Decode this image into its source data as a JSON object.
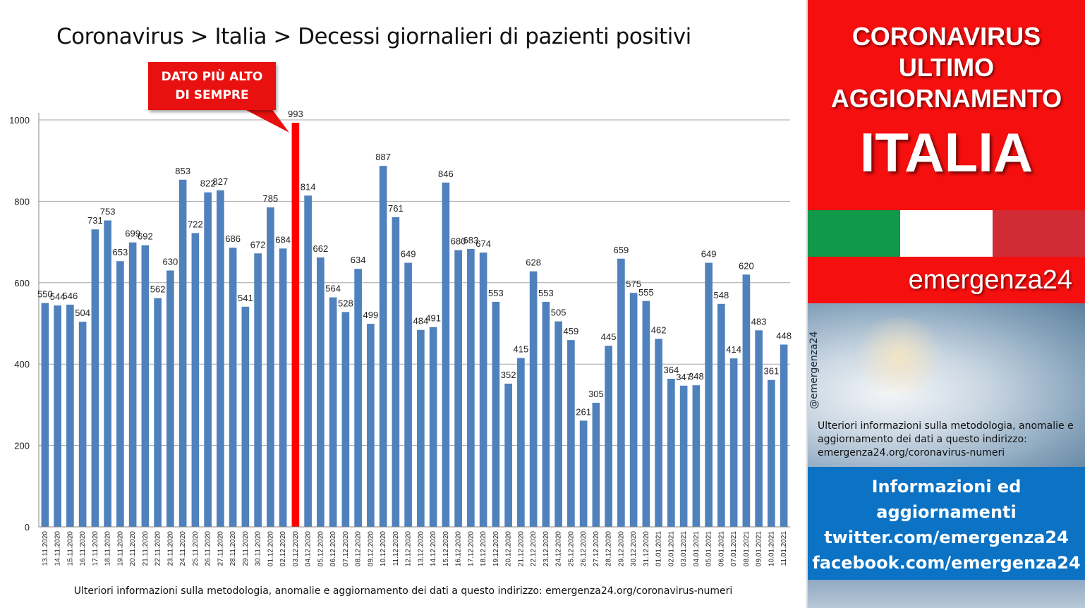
{
  "title": "Coronavirus > Italia > Decessi giornalieri di pazienti positivi",
  "callout": {
    "line1": "DATO PIÙ ALTO",
    "line2": "DI SEMPRE"
  },
  "footnote": "Ulteriori informazioni sulla metodologia, anomalie e aggiornamento dei dati a questo indirizzo: emergenza24.org/coronavirus-numeri",
  "colors": {
    "bar": "#4f81bd",
    "highlight_bar": "#ff0000",
    "callout": "#e8110f",
    "red_panel": "#f50f0f",
    "blue_panel": "#0b72c4"
  },
  "side": {
    "headline1": "CORONAVIRUS",
    "headline2": "ULTIMO",
    "headline3": "AGGIORNAMENTO",
    "headline_big": "ITALIA",
    "brand": "emergenza24",
    "handle": "@emergenza24",
    "note": "Ulteriori informazioni sulla metodologia, anomalie e aggiornamento dei dati a questo indirizzo: emergenza24.org/coronavirus-numeri",
    "info1": "Informazioni ed",
    "info2": "aggiornamenti",
    "info3": "twitter.com/emergenza24",
    "info4": "facebook.com/emergenza24"
  },
  "chart_data": {
    "type": "bar",
    "title": "Coronavirus > Italia > Decessi giornalieri di pazienti positivi",
    "xlabel": "",
    "ylabel": "",
    "ylim": [
      0,
      1000
    ],
    "yticks": [
      0,
      200,
      400,
      600,
      800,
      1000
    ],
    "grid": true,
    "highlight_category": "03.12.2020",
    "categories": [
      "13.11.2020",
      "14.11.2020",
      "15.11.2020",
      "16.11.2020",
      "17.11.2020",
      "18.11.2020",
      "19.11.2020",
      "20.11.2020",
      "21.11.2020",
      "22.11.2020",
      "23.11.2020",
      "24.11.2020",
      "25.11.2020",
      "26.11.2020",
      "27.11.2020",
      "28.11.2020",
      "29.11.2020",
      "30.11.2020",
      "01.12.2020",
      "02.12.2020",
      "03.12.2020",
      "04.12.2020",
      "05.12.2020",
      "06.12.2020",
      "07.12.2020",
      "08.12.2020",
      "09.12.2020",
      "10.12.2020",
      "11.12.2020",
      "12.12.2020",
      "13.12.2020",
      "14.12.2020",
      "15.12.2020",
      "16.12.2020",
      "17.12.2020",
      "18.12.2020",
      "19.12.2020",
      "20.12.2020",
      "21.12.2020",
      "22.12.2020",
      "23.12.2020",
      "24.12.2020",
      "25.12.2020",
      "26.12.2020",
      "27.12.2020",
      "28.12.2020",
      "29.12.2020",
      "30.12.2020",
      "31.12.2020",
      "01.01.2021",
      "02.01.2021",
      "03.01.2021",
      "04.01.2021",
      "05.01.2021",
      "06.01.2021",
      "07.01.2021",
      "08.01.2021",
      "09.01.2021",
      "10.01.2021",
      "11.01.2021"
    ],
    "values": [
      550,
      544,
      546,
      504,
      731,
      753,
      653,
      699,
      692,
      562,
      630,
      853,
      722,
      822,
      827,
      686,
      541,
      672,
      785,
      684,
      993,
      814,
      662,
      564,
      528,
      634,
      499,
      887,
      761,
      649,
      484,
      491,
      846,
      680,
      683,
      674,
      553,
      352,
      415,
      628,
      553,
      505,
      459,
      261,
      305,
      445,
      659,
      575,
      555,
      462,
      364,
      347,
      348,
      649,
      548,
      414,
      620,
      483,
      361,
      448
    ]
  }
}
